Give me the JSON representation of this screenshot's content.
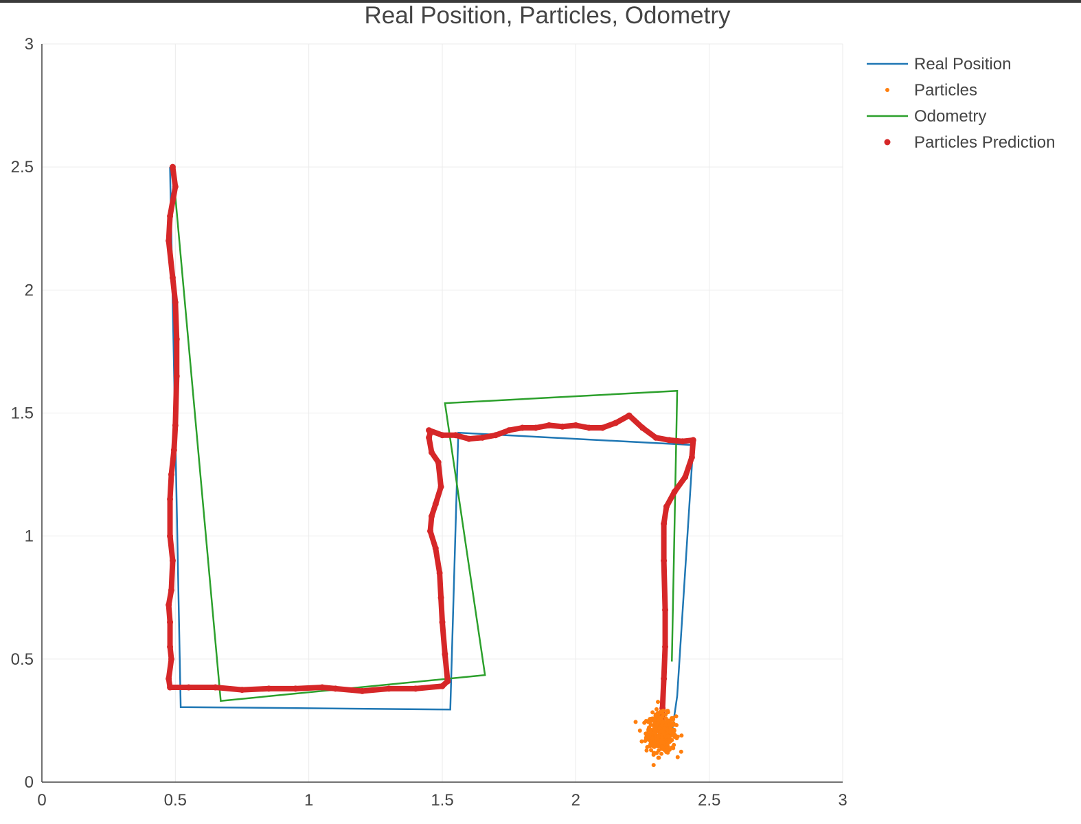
{
  "chart_data": {
    "type": "line",
    "title": "Real Position, Particles, Odometry",
    "xlabel": "",
    "ylabel": "",
    "xlim": [
      0,
      3
    ],
    "ylim": [
      0,
      3
    ],
    "x_ticks": [
      "0",
      "0.5",
      "1",
      "1.5",
      "2",
      "2.5",
      "3"
    ],
    "y_ticks": [
      "0",
      "0.5",
      "1",
      "1.5",
      "2",
      "2.5",
      "3"
    ],
    "grid": true,
    "legend_position": "top-right",
    "series": [
      {
        "name": "Real Position",
        "mode": "line",
        "color": "#1f77b4",
        "x": [
          0.48,
          0.52,
          1.53,
          1.56,
          2.44,
          2.38,
          2.36
        ],
        "y": [
          2.5,
          0.305,
          0.295,
          1.42,
          1.37,
          0.35,
          0.2
        ]
      },
      {
        "name": "Particles",
        "mode": "markers",
        "color": "#ff7f0e",
        "center": [
          2.32,
          0.2
        ],
        "spread": [
          0.05,
          0.07
        ],
        "count": 420
      },
      {
        "name": "Odometry",
        "mode": "line",
        "color": "#2ca02c",
        "x": [
          0.49,
          0.67,
          1.66,
          1.51,
          2.38,
          2.36
        ],
        "y": [
          2.5,
          0.33,
          0.435,
          1.54,
          1.59,
          0.49
        ]
      },
      {
        "name": "Particles Prediction",
        "mode": "markers",
        "color": "#d62728",
        "x": [
          0.49,
          0.5,
          0.48,
          0.475,
          0.49,
          0.5,
          0.505,
          0.505,
          0.5,
          0.495,
          0.485,
          0.48,
          0.48,
          0.49,
          0.485,
          0.475,
          0.48,
          0.48,
          0.485,
          0.475,
          0.48,
          0.55,
          0.65,
          0.75,
          0.85,
          0.95,
          1.05,
          1.1,
          1.2,
          1.3,
          1.4,
          1.5,
          1.52,
          1.51,
          1.5,
          1.495,
          1.49,
          1.475,
          1.455,
          1.46,
          1.475,
          1.495,
          1.485,
          1.46,
          1.45,
          1.455,
          1.45,
          1.5,
          1.55,
          1.6,
          1.65,
          1.7,
          1.75,
          1.8,
          1.85,
          1.9,
          1.95,
          2.0,
          2.05,
          2.1,
          2.15,
          2.2,
          2.25,
          2.3,
          2.35,
          2.4,
          2.44,
          2.435,
          2.41,
          2.37,
          2.34,
          2.33,
          2.33,
          2.335,
          2.335,
          2.33,
          2.325,
          2.32
        ],
        "y": [
          2.5,
          2.42,
          2.3,
          2.2,
          2.05,
          1.95,
          1.8,
          1.65,
          1.45,
          1.35,
          1.25,
          1.15,
          1.0,
          0.9,
          0.78,
          0.72,
          0.65,
          0.55,
          0.5,
          0.42,
          0.385,
          0.385,
          0.385,
          0.375,
          0.38,
          0.38,
          0.385,
          0.38,
          0.37,
          0.38,
          0.38,
          0.39,
          0.41,
          0.52,
          0.65,
          0.75,
          0.85,
          0.95,
          1.02,
          1.08,
          1.13,
          1.2,
          1.3,
          1.34,
          1.4,
          1.42,
          1.43,
          1.41,
          1.41,
          1.395,
          1.4,
          1.41,
          1.43,
          1.44,
          1.44,
          1.45,
          1.445,
          1.45,
          1.44,
          1.44,
          1.46,
          1.49,
          1.44,
          1.4,
          1.39,
          1.385,
          1.39,
          1.32,
          1.24,
          1.18,
          1.12,
          1.05,
          0.9,
          0.7,
          0.55,
          0.42,
          0.3,
          0.2
        ]
      }
    ]
  }
}
